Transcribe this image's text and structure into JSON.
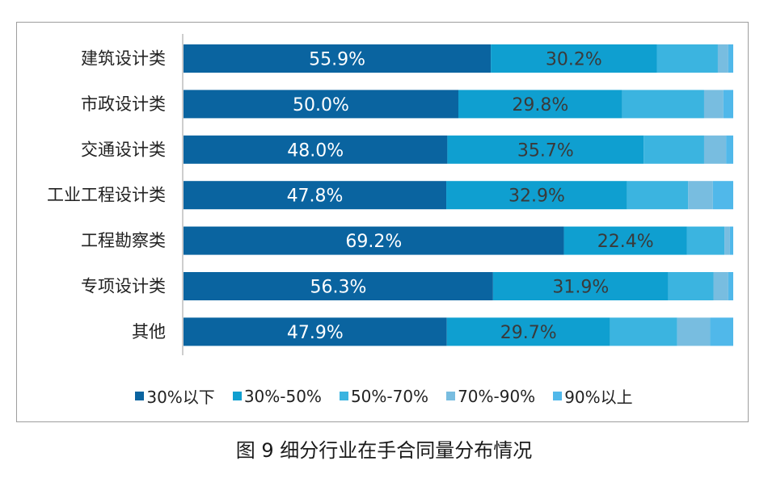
{
  "chart_data": {
    "type": "bar",
    "orientation": "horizontal",
    "stacked": true,
    "categories": [
      "建筑设计类",
      "市政设计类",
      "交通设计类",
      "工业工程设计类",
      "工程勘察类",
      "专项设计类",
      "其他"
    ],
    "series": [
      {
        "name": "30%以下",
        "color": "#0a64a0",
        "values": [
          55.9,
          50.0,
          48.0,
          47.8,
          69.2,
          56.3,
          47.9
        ]
      },
      {
        "name": "30%-50%",
        "color": "#0f9fd0",
        "values": [
          30.2,
          29.8,
          35.7,
          32.9,
          22.4,
          31.9,
          29.7
        ]
      },
      {
        "name": "50%-70%",
        "color": "#3bb4e0",
        "values": [
          11.1,
          14.9,
          11.0,
          11.1,
          6.8,
          8.2,
          12.2
        ]
      },
      {
        "name": "70%-90%",
        "color": "#78bde0",
        "values": [
          1.9,
          3.5,
          4.0,
          4.5,
          1.0,
          2.7,
          6.0
        ]
      },
      {
        "name": "90%以上",
        "color": "#50b8ea",
        "values": [
          0.9,
          1.8,
          1.3,
          3.7,
          0.6,
          0.9,
          4.2
        ]
      }
    ],
    "data_labels": [
      [
        "55.9%",
        "30.2%"
      ],
      [
        "50.0%",
        "29.8%"
      ],
      [
        "48.0%",
        "35.7%"
      ],
      [
        "47.8%",
        "32.9%"
      ],
      [
        "69.2%",
        "22.4%"
      ],
      [
        "56.3%",
        "31.9%"
      ],
      [
        "47.9%",
        "29.7%"
      ]
    ],
    "xlim": [
      0,
      100
    ],
    "legend_position": "bottom",
    "grid": false
  },
  "caption": "图 9  细分行业在手合同量分布情况"
}
